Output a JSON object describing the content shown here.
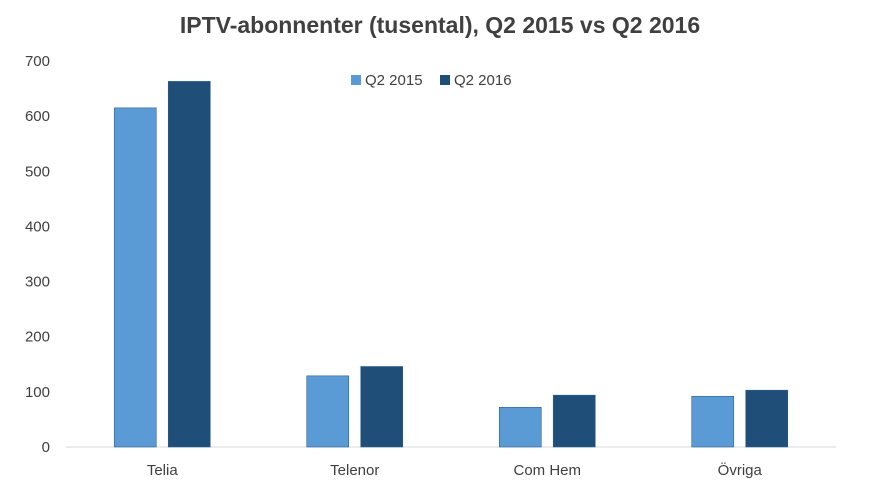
{
  "chart_data": {
    "type": "bar",
    "title": "IPTV-abonnenter (tusental), Q2 2015 vs Q2 2016",
    "xlabel": "",
    "ylabel": "",
    "categories": [
      "Telia",
      "Telenor",
      "Com Hem",
      "Övriga"
    ],
    "series": [
      {
        "name": "Q2 2015",
        "values": [
          615,
          129,
          72,
          92
        ],
        "color": "#5b9bd5"
      },
      {
        "name": "Q2 2016",
        "values": [
          663,
          146,
          94,
          103
        ],
        "color": "#1f4e79"
      }
    ],
    "ylim": [
      0,
      700
    ],
    "yticks": [
      0,
      100,
      200,
      300,
      400,
      500,
      600,
      700
    ],
    "grid": false,
    "legend": "top-center"
  }
}
